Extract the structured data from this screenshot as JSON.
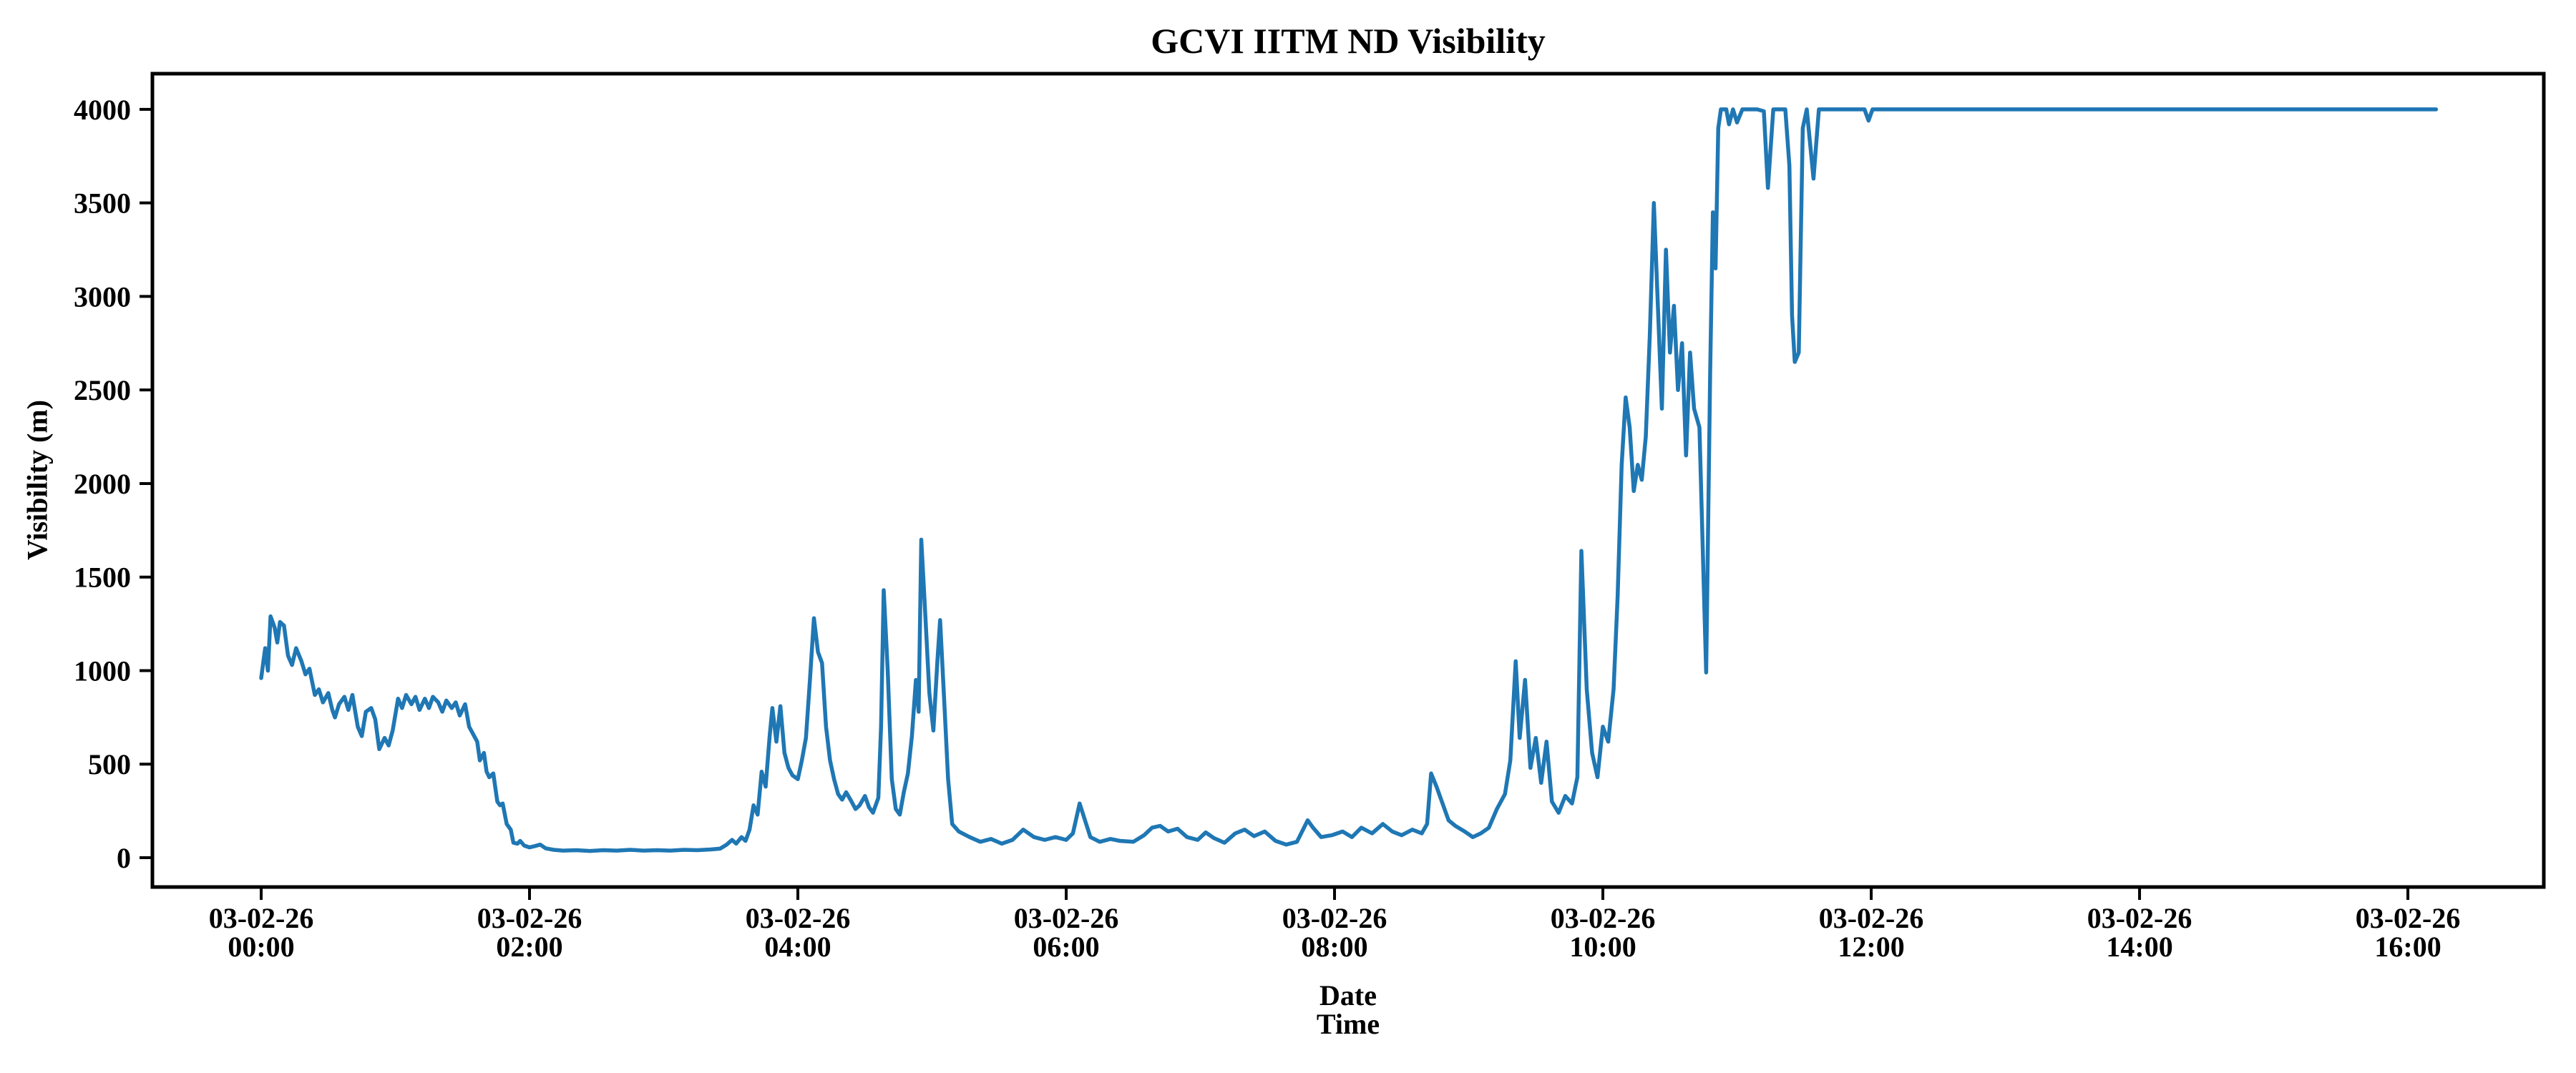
{
  "chart_data": {
    "type": "line",
    "title": "GCVI IITM ND Visibility",
    "ylabel": "Visibility (m)",
    "xlabel_lines": [
      "Date",
      "Time"
    ],
    "legend": null,
    "grid": false,
    "line_color": "#1f77b4",
    "axis_color": "#000000",
    "x_unit": "hours since first tick (times shown on axis)",
    "xlim": [
      -0.8107,
      17.013
    ],
    "ylim": [
      -156.8,
      4190.8
    ],
    "y_ticks": [
      0,
      500,
      1000,
      1500,
      2000,
      2500,
      3000,
      3500,
      4000
    ],
    "x_ticks": [
      {
        "hours": 0,
        "date": "03-02-26",
        "time": "00:00"
      },
      {
        "hours": 2,
        "date": "03-02-26",
        "time": "02:00"
      },
      {
        "hours": 4,
        "date": "03-02-26",
        "time": "04:00"
      },
      {
        "hours": 6,
        "date": "03-02-26",
        "time": "06:00"
      },
      {
        "hours": 8,
        "date": "03-02-26",
        "time": "08:00"
      },
      {
        "hours": 10,
        "date": "03-02-26",
        "time": "10:00"
      },
      {
        "hours": 12,
        "date": "03-02-26",
        "time": "12:00"
      },
      {
        "hours": 14,
        "date": "03-02-26",
        "time": "14:00"
      },
      {
        "hours": 16,
        "date": "03-02-26",
        "time": "16:00"
      }
    ],
    "series": [
      {
        "name": "visibility",
        "points": [
          [
            0.0,
            960
          ],
          [
            0.03,
            1120
          ],
          [
            0.05,
            1000
          ],
          [
            0.07,
            1290
          ],
          [
            0.1,
            1230
          ],
          [
            0.12,
            1150
          ],
          [
            0.14,
            1260
          ],
          [
            0.17,
            1240
          ],
          [
            0.2,
            1080
          ],
          [
            0.23,
            1030
          ],
          [
            0.26,
            1120
          ],
          [
            0.3,
            1050
          ],
          [
            0.33,
            980
          ],
          [
            0.36,
            1010
          ],
          [
            0.4,
            870
          ],
          [
            0.43,
            900
          ],
          [
            0.46,
            830
          ],
          [
            0.5,
            880
          ],
          [
            0.53,
            790
          ],
          [
            0.55,
            750
          ],
          [
            0.58,
            820
          ],
          [
            0.62,
            860
          ],
          [
            0.65,
            790
          ],
          [
            0.68,
            870
          ],
          [
            0.72,
            700
          ],
          [
            0.75,
            650
          ],
          [
            0.78,
            780
          ],
          [
            0.82,
            800
          ],
          [
            0.85,
            740
          ],
          [
            0.88,
            580
          ],
          [
            0.92,
            640
          ],
          [
            0.95,
            600
          ],
          [
            0.98,
            680
          ],
          [
            1.02,
            850
          ],
          [
            1.05,
            800
          ],
          [
            1.08,
            870
          ],
          [
            1.12,
            820
          ],
          [
            1.15,
            860
          ],
          [
            1.18,
            790
          ],
          [
            1.22,
            850
          ],
          [
            1.25,
            800
          ],
          [
            1.28,
            860
          ],
          [
            1.32,
            830
          ],
          [
            1.35,
            780
          ],
          [
            1.38,
            840
          ],
          [
            1.42,
            800
          ],
          [
            1.45,
            830
          ],
          [
            1.48,
            760
          ],
          [
            1.52,
            820
          ],
          [
            1.55,
            700
          ],
          [
            1.58,
            660
          ],
          [
            1.61,
            620
          ],
          [
            1.63,
            520
          ],
          [
            1.66,
            560
          ],
          [
            1.68,
            460
          ],
          [
            1.7,
            430
          ],
          [
            1.73,
            450
          ],
          [
            1.76,
            300
          ],
          [
            1.78,
            280
          ],
          [
            1.8,
            290
          ],
          [
            1.83,
            180
          ],
          [
            1.86,
            150
          ],
          [
            1.88,
            80
          ],
          [
            1.91,
            75
          ],
          [
            1.93,
            90
          ],
          [
            1.96,
            65
          ],
          [
            2.0,
            55
          ],
          [
            2.04,
            62
          ],
          [
            2.08,
            70
          ],
          [
            2.12,
            50
          ],
          [
            2.18,
            42
          ],
          [
            2.25,
            38
          ],
          [
            2.35,
            40
          ],
          [
            2.45,
            36
          ],
          [
            2.55,
            40
          ],
          [
            2.65,
            38
          ],
          [
            2.75,
            42
          ],
          [
            2.85,
            38
          ],
          [
            2.95,
            40
          ],
          [
            3.05,
            38
          ],
          [
            3.15,
            42
          ],
          [
            3.25,
            40
          ],
          [
            3.35,
            44
          ],
          [
            3.42,
            48
          ],
          [
            3.47,
            70
          ],
          [
            3.51,
            95
          ],
          [
            3.54,
            75
          ],
          [
            3.58,
            110
          ],
          [
            3.61,
            90
          ],
          [
            3.64,
            150
          ],
          [
            3.67,
            280
          ],
          [
            3.7,
            230
          ],
          [
            3.73,
            460
          ],
          [
            3.76,
            380
          ],
          [
            3.79,
            650
          ],
          [
            3.81,
            800
          ],
          [
            3.84,
            620
          ],
          [
            3.87,
            810
          ],
          [
            3.9,
            560
          ],
          [
            3.93,
            480
          ],
          [
            3.96,
            440
          ],
          [
            4.0,
            420
          ],
          [
            4.03,
            520
          ],
          [
            4.06,
            640
          ],
          [
            4.09,
            950
          ],
          [
            4.12,
            1280
          ],
          [
            4.15,
            1100
          ],
          [
            4.18,
            1040
          ],
          [
            4.21,
            700
          ],
          [
            4.24,
            520
          ],
          [
            4.27,
            420
          ],
          [
            4.3,
            340
          ],
          [
            4.33,
            310
          ],
          [
            4.36,
            350
          ],
          [
            4.4,
            300
          ],
          [
            4.43,
            260
          ],
          [
            4.46,
            280
          ],
          [
            4.5,
            330
          ],
          [
            4.53,
            270
          ],
          [
            4.56,
            240
          ],
          [
            4.6,
            320
          ],
          [
            4.62,
            700
          ],
          [
            4.64,
            1430
          ],
          [
            4.67,
            1000
          ],
          [
            4.7,
            420
          ],
          [
            4.73,
            260
          ],
          [
            4.76,
            230
          ],
          [
            4.79,
            350
          ],
          [
            4.82,
            450
          ],
          [
            4.85,
            650
          ],
          [
            4.88,
            950
          ],
          [
            4.9,
            780
          ],
          [
            4.92,
            1700
          ],
          [
            4.95,
            1300
          ],
          [
            4.98,
            880
          ],
          [
            5.01,
            680
          ],
          [
            5.04,
            1050
          ],
          [
            5.06,
            1270
          ],
          [
            5.09,
            850
          ],
          [
            5.12,
            420
          ],
          [
            5.15,
            180
          ],
          [
            5.2,
            140
          ],
          [
            5.28,
            110
          ],
          [
            5.36,
            85
          ],
          [
            5.44,
            100
          ],
          [
            5.52,
            75
          ],
          [
            5.6,
            95
          ],
          [
            5.68,
            150
          ],
          [
            5.76,
            110
          ],
          [
            5.84,
            95
          ],
          [
            5.92,
            110
          ],
          [
            6.0,
            95
          ],
          [
            6.05,
            130
          ],
          [
            6.1,
            290
          ],
          [
            6.14,
            200
          ],
          [
            6.18,
            110
          ],
          [
            6.25,
            85
          ],
          [
            6.33,
            100
          ],
          [
            6.4,
            90
          ],
          [
            6.5,
            85
          ],
          [
            6.58,
            120
          ],
          [
            6.64,
            160
          ],
          [
            6.7,
            170
          ],
          [
            6.76,
            140
          ],
          [
            6.83,
            155
          ],
          [
            6.9,
            110
          ],
          [
            6.98,
            95
          ],
          [
            7.04,
            135
          ],
          [
            7.1,
            105
          ],
          [
            7.18,
            80
          ],
          [
            7.26,
            130
          ],
          [
            7.33,
            150
          ],
          [
            7.4,
            115
          ],
          [
            7.48,
            140
          ],
          [
            7.56,
            90
          ],
          [
            7.64,
            70
          ],
          [
            7.72,
            85
          ],
          [
            7.8,
            200
          ],
          [
            7.84,
            160
          ],
          [
            7.9,
            110
          ],
          [
            7.98,
            120
          ],
          [
            8.06,
            140
          ],
          [
            8.13,
            110
          ],
          [
            8.2,
            160
          ],
          [
            8.28,
            130
          ],
          [
            8.36,
            180
          ],
          [
            8.43,
            140
          ],
          [
            8.5,
            120
          ],
          [
            8.58,
            150
          ],
          [
            8.65,
            130
          ],
          [
            8.69,
            180
          ],
          [
            8.72,
            450
          ],
          [
            8.76,
            380
          ],
          [
            8.8,
            300
          ],
          [
            8.85,
            200
          ],
          [
            8.9,
            170
          ],
          [
            8.97,
            140
          ],
          [
            9.03,
            110
          ],
          [
            9.09,
            130
          ],
          [
            9.15,
            160
          ],
          [
            9.21,
            260
          ],
          [
            9.27,
            340
          ],
          [
            9.31,
            520
          ],
          [
            9.35,
            1050
          ],
          [
            9.38,
            640
          ],
          [
            9.42,
            950
          ],
          [
            9.46,
            480
          ],
          [
            9.5,
            640
          ],
          [
            9.54,
            400
          ],
          [
            9.58,
            620
          ],
          [
            9.62,
            300
          ],
          [
            9.67,
            240
          ],
          [
            9.72,
            330
          ],
          [
            9.77,
            290
          ],
          [
            9.81,
            430
          ],
          [
            9.84,
            1640
          ],
          [
            9.88,
            900
          ],
          [
            9.92,
            560
          ],
          [
            9.96,
            430
          ],
          [
            10.0,
            700
          ],
          [
            10.04,
            620
          ],
          [
            10.08,
            900
          ],
          [
            10.11,
            1400
          ],
          [
            10.14,
            2100
          ],
          [
            10.17,
            2460
          ],
          [
            10.2,
            2300
          ],
          [
            10.23,
            1960
          ],
          [
            10.26,
            2100
          ],
          [
            10.29,
            2020
          ],
          [
            10.32,
            2250
          ],
          [
            10.35,
            2800
          ],
          [
            10.38,
            3500
          ],
          [
            10.41,
            2950
          ],
          [
            10.44,
            2400
          ],
          [
            10.47,
            3250
          ],
          [
            10.5,
            2700
          ],
          [
            10.53,
            2950
          ],
          [
            10.56,
            2500
          ],
          [
            10.59,
            2750
          ],
          [
            10.62,
            2150
          ],
          [
            10.65,
            2700
          ],
          [
            10.68,
            2400
          ],
          [
            10.72,
            2300
          ],
          [
            10.75,
            1500
          ],
          [
            10.77,
            990
          ],
          [
            10.8,
            2600
          ],
          [
            10.82,
            3450
          ],
          [
            10.84,
            3150
          ],
          [
            10.86,
            3900
          ],
          [
            10.88,
            4000
          ],
          [
            10.92,
            4000
          ],
          [
            10.94,
            3920
          ],
          [
            10.97,
            4000
          ],
          [
            11.0,
            3930
          ],
          [
            11.04,
            4000
          ],
          [
            11.15,
            4000
          ],
          [
            11.2,
            3990
          ],
          [
            11.23,
            3580
          ],
          [
            11.27,
            4000
          ],
          [
            11.36,
            4000
          ],
          [
            11.39,
            3700
          ],
          [
            11.41,
            2900
          ],
          [
            11.43,
            2650
          ],
          [
            11.46,
            2700
          ],
          [
            11.49,
            3900
          ],
          [
            11.52,
            4000
          ],
          [
            11.57,
            3630
          ],
          [
            11.61,
            4000
          ],
          [
            11.75,
            4000
          ],
          [
            11.95,
            4000
          ],
          [
            11.98,
            3940
          ],
          [
            12.01,
            4000
          ],
          [
            12.5,
            4000
          ],
          [
            13.0,
            4000
          ],
          [
            13.5,
            4000
          ],
          [
            14.0,
            4000
          ],
          [
            14.5,
            4000
          ],
          [
            15.0,
            4000
          ],
          [
            15.5,
            4000
          ],
          [
            16.0,
            4000
          ],
          [
            16.21,
            4000
          ]
        ]
      }
    ]
  }
}
